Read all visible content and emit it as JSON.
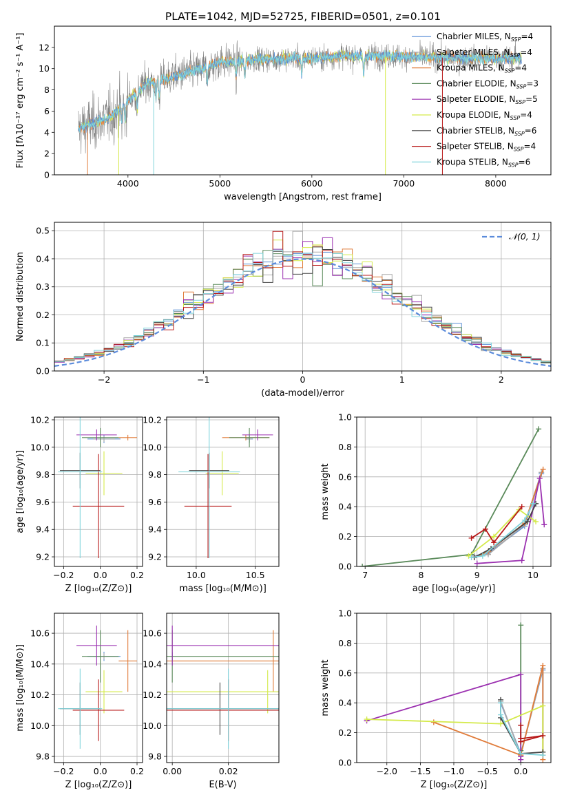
{
  "title": "PLATE=1042, MJD=52725, FIBERID=0501, z=0.101",
  "colors": {
    "chabrier_miles": "#5b8fd6",
    "salpeter_miles": "#a9a9a9",
    "kroupa_miles": "#e07b39",
    "chabrier_elodie": "#5a8a5a",
    "salpeter_elodie": "#9b30b0",
    "kroupa_elodie": "#d4ea4a",
    "chabrier_stelib": "#444444",
    "salpeter_stelib": "#b81818",
    "kroupa_stelib": "#80d4dc",
    "gaussian": "#5b8bdb"
  },
  "chart_data": [
    {
      "id": "spectrum",
      "type": "line",
      "xlabel": "wavelength [Angstrom, rest frame]",
      "ylabel": "Flux [fλ10⁻¹⁷ erg cm⁻² s⁻¹ A⁻¹]",
      "xlim": [
        3200,
        8600
      ],
      "ylim": [
        0,
        14
      ],
      "xticks": [
        "4000",
        "5000",
        "6000",
        "7000",
        "8000"
      ],
      "yticks": [
        "0",
        "2",
        "4",
        "6",
        "8",
        "10",
        "12"
      ],
      "legend": [
        {
          "label": "Chabrier MILES, N",
          "n": "4"
        },
        {
          "label": "Salpeter MILES, N",
          "n": "4"
        },
        {
          "label": "Kroupa MILES, N",
          "n": "4"
        },
        {
          "label": "Chabrier ELODIE, N",
          "n": "3"
        },
        {
          "label": "Salpeter ELODIE, N",
          "n": "5"
        },
        {
          "label": "Kroupa ELODIE, N",
          "n": "4"
        },
        {
          "label": "Chabrier STELIB, N",
          "n": "6"
        },
        {
          "label": "Salpeter STELIB, N",
          "n": "4"
        },
        {
          "label": "Kroupa STELIB, N",
          "n": "6"
        }
      ],
      "ssp_subscript": "SSP",
      "continuum": {
        "x": [
          3450,
          3600,
          3800,
          4000,
          4200,
          4400,
          4600,
          4800,
          5000,
          5200,
          5400,
          5600,
          5800,
          6000,
          6400,
          6800,
          7200,
          7600,
          8000,
          8300
        ],
        "y": [
          4.3,
          4.8,
          5.4,
          7.0,
          8.6,
          9.0,
          9.5,
          10.0,
          10.6,
          10.7,
          10.9,
          10.9,
          11.0,
          11.0,
          11.2,
          11.2,
          11.1,
          11.0,
          11.0,
          11.0
        ]
      }
    },
    {
      "id": "residuals",
      "type": "histogram",
      "xlabel": "(data-model)/error",
      "ylabel": "Normed distribution",
      "xlim": [
        -2.5,
        2.5
      ],
      "ylim": [
        0,
        0.53
      ],
      "xticks": [
        "−2",
        "−1",
        "0",
        "1",
        "2"
      ],
      "yticks": [
        "0.0",
        "0.1",
        "0.2",
        "0.3",
        "0.4",
        "0.5"
      ],
      "legend_label": "𝒩(0, 1)",
      "bin_width": 0.1
    },
    {
      "id": "age_vs_z",
      "type": "errorbar",
      "xlabel": "Z [log₁₀(Z/Z⊙)]",
      "ylabel": "age  [log₁₀(age/yr)]",
      "xlim": [
        -0.25,
        0.23
      ],
      "ylim": [
        9.13,
        10.22
      ],
      "xticks": [
        "−0.2",
        "0.0",
        "0.2"
      ],
      "yticks": [
        "9.2",
        "9.4",
        "9.6",
        "9.8",
        "10.0",
        "10.2"
      ]
    },
    {
      "id": "age_vs_mass",
      "type": "errorbar",
      "xlabel": "mass [log₁₀(M/M⊙)]",
      "ylabel": "",
      "xlim": [
        9.75,
        10.7
      ],
      "ylim": [
        9.13,
        10.22
      ],
      "xticks": [
        "10.0",
        "10.5"
      ],
      "yticks": [
        "9.2",
        "9.4",
        "9.6",
        "9.8",
        "10.0",
        "10.2"
      ]
    },
    {
      "id": "weight_vs_age",
      "type": "line",
      "xlabel": "age  [log₁₀(age/yr)]",
      "ylabel": "mass weight",
      "xlim": [
        6.85,
        10.32
      ],
      "ylim": [
        0,
        1
      ],
      "xticks": [
        "7",
        "8",
        "9",
        "10"
      ],
      "yticks": [
        "0.0",
        "0.2",
        "0.4",
        "0.6",
        "0.8",
        "1.0"
      ]
    },
    {
      "id": "mass_vs_z",
      "type": "errorbar",
      "xlabel": "Z [log₁₀(Z/Z⊙)]",
      "ylabel": "mass [log₁₀(M/M⊙)]",
      "xlim": [
        -0.25,
        0.23
      ],
      "ylim": [
        9.76,
        10.73
      ],
      "xticks": [
        "−0.2",
        "0.0",
        "0.2"
      ],
      "yticks": [
        "9.8",
        "10.0",
        "10.2",
        "10.4",
        "10.6"
      ]
    },
    {
      "id": "mass_vs_ebv",
      "type": "errorbar",
      "xlabel": "E(B-V)",
      "ylabel": "",
      "xlim": [
        -0.002,
        0.038
      ],
      "ylim": [
        9.76,
        10.73
      ],
      "xticks": [
        "0.00",
        "0.02"
      ],
      "yticks": [
        "9.8",
        "10.0",
        "10.2",
        "10.4",
        "10.6"
      ]
    },
    {
      "id": "weight_vs_z",
      "type": "line",
      "xlabel": "Z [log₁₀(Z/Z⊙)]",
      "ylabel": "mass weight",
      "xlim": [
        -2.45,
        0.45
      ],
      "ylim": [
        0,
        1
      ],
      "xticks": [
        "−2.0",
        "−1.5",
        "−1.0",
        "−0.5",
        "0.0"
      ],
      "yticks": [
        "0.0",
        "0.2",
        "0.4",
        "0.6",
        "0.8",
        "1.0"
      ]
    }
  ],
  "fits": [
    {
      "key": "chabrier_miles",
      "z": 0.02,
      "zerr": 0.09,
      "age": 10.06,
      "aerr": 0.03,
      "mass": 10.45,
      "merr": 0.03,
      "ebv": 0.0,
      "eerr": 0.0,
      "w_age": [
        [
          8.95,
          0.07
        ],
        [
          9.2,
          0.09
        ],
        [
          9.85,
          0.27
        ],
        [
          10.15,
          0.62
        ]
      ],
      "w_z": [
        [
          -0.3,
          0.4
        ],
        [
          0.0,
          0.06
        ],
        [
          0.33,
          0.62
        ],
        [
          0.33,
          0.05
        ]
      ]
    },
    {
      "key": "salpeter_miles",
      "z": 0.02,
      "zerr": 0.06,
      "age": 10.06,
      "aerr": 0.02,
      "mass": 10.45,
      "merr": 0.02,
      "ebv": 0.0,
      "eerr": 0.0,
      "w_age": [
        [
          8.95,
          0.07
        ],
        [
          9.2,
          0.08
        ],
        [
          9.85,
          0.28
        ],
        [
          10.15,
          0.63
        ]
      ],
      "w_z": [
        [
          -0.3,
          0.41
        ],
        [
          0.0,
          0.05
        ],
        [
          0.33,
          0.63
        ],
        [
          0.33,
          0.05
        ]
      ]
    },
    {
      "key": "kroupa_miles",
      "z": 0.15,
      "zerr": 0.05,
      "age": 10.07,
      "aerr": 0.02,
      "mass": 10.42,
      "merr": 0.2,
      "ebv": 0.036,
      "eerr": 0.19,
      "w_age": [
        [
          8.95,
          0.06
        ],
        [
          9.2,
          0.1
        ],
        [
          9.85,
          0.29
        ],
        [
          10.18,
          0.65
        ]
      ],
      "w_z": [
        [
          -1.3,
          0.27
        ],
        [
          0.0,
          0.05
        ],
        [
          0.33,
          0.65
        ],
        [
          0.33,
          0.02
        ]
      ]
    },
    {
      "key": "chabrier_elodie",
      "z": 0.0,
      "zerr": 0.1,
      "age": 10.07,
      "aerr": 0.07,
      "mass": 10.45,
      "merr": 0.17,
      "ebv": 0.0,
      "eerr": 0.2,
      "w_age": [
        [
          6.95,
          0.0
        ],
        [
          8.9,
          0.08
        ],
        [
          10.1,
          0.92
        ]
      ],
      "w_z": [
        [
          0.0,
          0.0
        ],
        [
          0.0,
          0.92
        ],
        [
          0.0,
          0.08
        ]
      ]
    },
    {
      "key": "salpeter_elodie",
      "z": -0.02,
      "zerr": 0.11,
      "age": 10.09,
      "aerr": 0.04,
      "mass": 10.52,
      "merr": 0.13,
      "ebv": 0.0,
      "eerr": 0.2,
      "w_age": [
        [
          9.0,
          0.02
        ],
        [
          9.8,
          0.04
        ],
        [
          10.12,
          0.59
        ],
        [
          10.2,
          0.28
        ]
      ],
      "w_z": [
        [
          -2.3,
          0.28
        ],
        [
          0.0,
          0.59
        ],
        [
          0.0,
          0.02
        ],
        [
          0.0,
          0.04
        ]
      ]
    },
    {
      "key": "kroupa_elodie",
      "z": 0.02,
      "zerr": 0.1,
      "age": 9.81,
      "aerr": 0.16,
      "mass": 10.22,
      "merr": 0.14,
      "ebv": 0.034,
      "eerr": 0.18,
      "w_age": [
        [
          8.85,
          0.07
        ],
        [
          9.3,
          0.2
        ],
        [
          9.75,
          0.38
        ],
        [
          10.05,
          0.3
        ]
      ],
      "w_z": [
        [
          -2.3,
          0.29
        ],
        [
          -0.3,
          0.26
        ],
        [
          0.33,
          0.38
        ],
        [
          0.33,
          0.07
        ]
      ]
    },
    {
      "key": "chabrier_stelib",
      "z": -0.11,
      "zerr": 0.11,
      "age": 9.83,
      "aerr": 0.13,
      "mass": 10.11,
      "merr": 0.17,
      "ebv": 0.017,
      "eerr": 0.17,
      "w_age": [
        [
          8.95,
          0.06
        ],
        [
          9.25,
          0.12
        ],
        [
          9.9,
          0.3
        ],
        [
          10.05,
          0.42
        ]
      ],
      "w_z": [
        [
          -0.3,
          0.42
        ],
        [
          -0.3,
          0.3
        ],
        [
          0.0,
          0.06
        ],
        [
          0.33,
          0.07
        ]
      ]
    },
    {
      "key": "salpeter_stelib",
      "z": -0.01,
      "zerr": 0.14,
      "age": 9.57,
      "aerr": 0.38,
      "mass": 10.1,
      "merr": 0.2,
      "ebv": 0.02,
      "eerr": 0.05,
      "w_age": [
        [
          8.9,
          0.19
        ],
        [
          9.15,
          0.25
        ],
        [
          9.3,
          0.16
        ],
        [
          9.8,
          0.4
        ]
      ],
      "w_z": [
        [
          0.0,
          0.25
        ],
        [
          0.0,
          0.16
        ],
        [
          0.33,
          0.18
        ],
        [
          0.0,
          0.14
        ]
      ]
    },
    {
      "key": "kroupa_stelib",
      "z": -0.11,
      "zerr": 0.12,
      "age": 9.82,
      "aerr": 0.63,
      "mass": 10.11,
      "merr": 0.26,
      "ebv": 0.02,
      "eerr": 0.25,
      "w_age": [
        [
          8.9,
          0.06
        ],
        [
          9.1,
          0.07
        ],
        [
          9.85,
          0.31
        ],
        [
          10.0,
          0.42
        ]
      ],
      "w_z": [
        [
          -0.3,
          0.4
        ],
        [
          -0.3,
          0.32
        ],
        [
          0.0,
          0.06
        ],
        [
          0.33,
          0.05
        ]
      ]
    }
  ]
}
